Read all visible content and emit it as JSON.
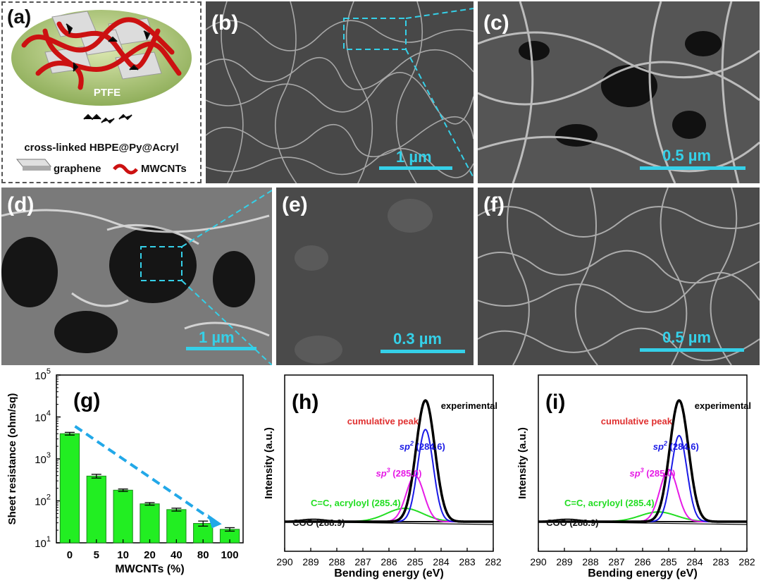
{
  "panels": {
    "a": {
      "label": "(a)",
      "ptfe": "PTFE",
      "crosslinked": "cross-linked HBPE@Py@Acryl",
      "graphene": "graphene",
      "mwcnts": "MWCNTs"
    },
    "b": {
      "label": "(b)",
      "scale": "1 µm"
    },
    "c": {
      "label": "(c)",
      "scale": "0.5 µm"
    },
    "d": {
      "label": "(d)",
      "scale": "1 µm"
    },
    "e": {
      "label": "(e)",
      "scale": "0.3 µm"
    },
    "f": {
      "label": "(f)",
      "scale": "0.5 µm"
    },
    "g": {
      "label": "(g)"
    },
    "h": {
      "label": "(h)"
    },
    "i": {
      "label": "(i)"
    }
  },
  "colors": {
    "accent": "#35d0e8",
    "bar": "#22ee22",
    "arrow": "#22a8e8"
  },
  "chart_data": [
    {
      "panel": "g",
      "type": "bar",
      "categories": [
        "0",
        "5",
        "10",
        "20",
        "40",
        "80",
        "100"
      ],
      "values": [
        4000,
        390,
        180,
        85,
        62,
        29,
        21
      ],
      "errors": [
        300,
        40,
        12,
        6,
        5,
        4,
        2
      ],
      "xlabel": "MWCNTs (%)",
      "ylabel": "Sheet resistance (ohm/sq)",
      "yscale": "log",
      "ylim": [
        10,
        100000
      ],
      "yticks": [
        "10",
        "10",
        "10",
        "10",
        "10"
      ],
      "yticks_exp": [
        "1",
        "2",
        "3",
        "4",
        "5"
      ]
    },
    {
      "panel": "h",
      "type": "line",
      "xlabel": "Bending energy (eV)",
      "ylabel": "Intensity (a.u.)",
      "xlim": [
        290,
        282
      ],
      "xticks": [
        "290",
        "289",
        "288",
        "287",
        "286",
        "285",
        "284",
        "283",
        "282"
      ],
      "series": [
        {
          "name": "experimental",
          "center": 284.6,
          "height": 1.0
        },
        {
          "name": "cumulative peak",
          "center": 284.6,
          "height": 1.0
        },
        {
          "name": "sp2",
          "center": 284.6,
          "height": 0.76
        },
        {
          "name": "sp3",
          "center": 285.0,
          "height": 0.38
        },
        {
          "name": "C=C, acryloyl",
          "center": 285.4,
          "height": 0.11
        },
        {
          "name": "COO",
          "center": 288.9,
          "height": 0.02
        }
      ],
      "annotations": [
        {
          "main": "experimental",
          "sup": "",
          "rest": ""
        },
        {
          "main": "cumulative peak",
          "sup": "",
          "rest": ""
        },
        {
          "main": "sp",
          "sup": "2",
          "rest": " (284.6)"
        },
        {
          "main": "sp",
          "sup": "3",
          "rest": " (285.0)"
        },
        {
          "main": "C=C, acryloyl (285.4)",
          "sup": "",
          "rest": ""
        },
        {
          "main": "COO (288.9)",
          "sup": "",
          "rest": ""
        }
      ]
    },
    {
      "panel": "i",
      "type": "line",
      "xlabel": "Bending energy (eV)",
      "ylabel": "Intensity (a.u.)",
      "xlim": [
        290,
        282
      ],
      "xticks": [
        "290",
        "289",
        "288",
        "287",
        "286",
        "285",
        "284",
        "283",
        "282"
      ],
      "series": [
        {
          "name": "experimental",
          "center": 284.6,
          "height": 1.0
        },
        {
          "name": "cumulative peak",
          "center": 284.6,
          "height": 1.0
        },
        {
          "name": "sp2",
          "center": 284.6,
          "height": 0.71
        },
        {
          "name": "sp3",
          "center": 285.0,
          "height": 0.43
        },
        {
          "name": "C=C, acryloyl",
          "center": 285.4,
          "height": 0.08
        },
        {
          "name": "COO",
          "center": 288.9,
          "height": 0.02
        }
      ],
      "annotations": [
        {
          "main": "experimental",
          "sup": "",
          "rest": ""
        },
        {
          "main": "cumulative peak",
          "sup": "",
          "rest": ""
        },
        {
          "main": "sp",
          "sup": "2",
          "rest": " (284.6)"
        },
        {
          "main": "sp",
          "sup": "3",
          "rest": " (285.0)"
        },
        {
          "main": "C=C, acryloyl (285.4)",
          "sup": "",
          "rest": ""
        },
        {
          "main": "COO (288.9)",
          "sup": "",
          "rest": ""
        }
      ]
    }
  ]
}
